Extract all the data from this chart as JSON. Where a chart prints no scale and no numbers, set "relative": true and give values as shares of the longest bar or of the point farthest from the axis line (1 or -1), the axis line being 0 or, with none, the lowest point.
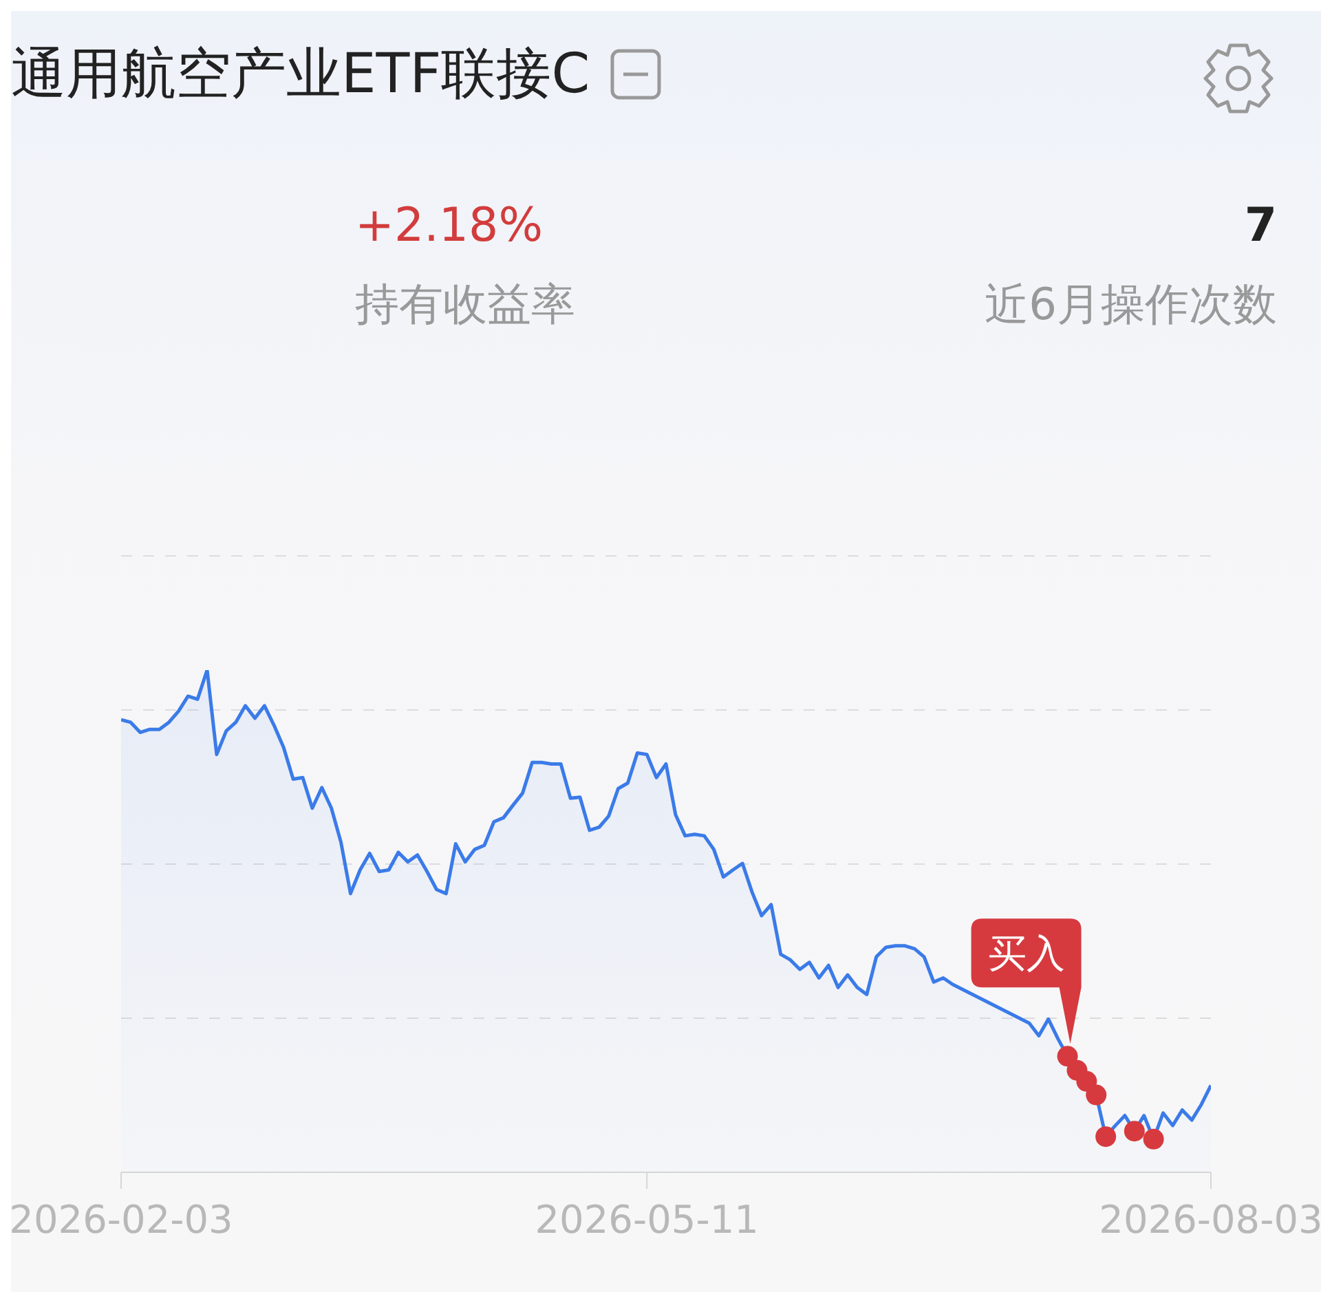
{
  "chart_data": {
    "type": "area",
    "title": "通用航空产业ETF联接C",
    "relative": true,
    "grid": "y",
    "annotations": [
      "+2.18%",
      "持有收益率",
      "7",
      "近6月操作次数",
      "买入"
    ],
    "categories": [
      "2026-02-03",
      null,
      null,
      null,
      null,
      null,
      null,
      null,
      null,
      null,
      null,
      null,
      null,
      null,
      null,
      null,
      null,
      null,
      null,
      null,
      null,
      null,
      null,
      null,
      null,
      null,
      null,
      null,
      null,
      null,
      null,
      null,
      null,
      null,
      null,
      null,
      null,
      null,
      null,
      null,
      null,
      null,
      null,
      null,
      null,
      null,
      null,
      null,
      null,
      null,
      null,
      null,
      null,
      null,
      null,
      "2026-05-11",
      null,
      null,
      null,
      null,
      null,
      null,
      null,
      null,
      null,
      null,
      null,
      null,
      null,
      null,
      null,
      null,
      null,
      null,
      null,
      null,
      null,
      null,
      null,
      null,
      null,
      null,
      null,
      null,
      null,
      null,
      null,
      null,
      null,
      null,
      null,
      null,
      null,
      null,
      null,
      null,
      null,
      null,
      null,
      null,
      null,
      null,
      null,
      null,
      null,
      null,
      null,
      null,
      null,
      null,
      null,
      null,
      null,
      null,
      "2026-08-03"
    ],
    "series": [
      {
        "color": "#3b7be8",
        "values": [
          0.901,
          0.896,
          0.876,
          0.882,
          0.882,
          0.896,
          0.918,
          0.948,
          0.942,
          1,
          0.832,
          0.879,
          0.896,
          0.929,
          0.904,
          0.929,
          0.89,
          0.846,
          0.783,
          0.786,
          0.725,
          0.766,
          0.725,
          0.657,
          0.555,
          0.602,
          0.635,
          0.599,
          0.602,
          0.637,
          0.618,
          0.632,
          0.599,
          0.563,
          0.555,
          0.654,
          0.618,
          0.643,
          0.651,
          0.698,
          0.706,
          0.731,
          0.755,
          0.816,
          0.816,
          0.813,
          0.813,
          0.745,
          0.747,
          0.681,
          0.687,
          0.709,
          0.764,
          0.775,
          0.835,
          0.832,
          0.786,
          0.813,
          0.712,
          0.67,
          0.673,
          0.67,
          0.643,
          0.588,
          0.602,
          0.615,
          0.558,
          0.511,
          0.533,
          0.434,
          0.423,
          0.404,
          0.418,
          0.387,
          0.412,
          0.368,
          0.393,
          0.368,
          0.354,
          0.429,
          0.448,
          0.451,
          0.451,
          0.445,
          0.429,
          0.379,
          0.387,
          0.374,
          null,
          null,
          null,
          null,
          null,
          null,
          null,
          0.297,
          0.272,
          0.305,
          0.266,
          0.231,
          0.203,
          0.181,
          0.154,
          0.071,
          0.093,
          0.113,
          0.082,
          0.113,
          0.066,
          0.118,
          0.093,
          0.124,
          0.104,
          0.135,
          0.173
        ]
      },
      {
        "type": "scatter",
        "color": "#d63a3f",
        "marker": "circle",
        "values": [
          null,
          null,
          null,
          null,
          null,
          null,
          null,
          null,
          null,
          null,
          null,
          null,
          null,
          null,
          null,
          null,
          null,
          null,
          null,
          null,
          null,
          null,
          null,
          null,
          null,
          null,
          null,
          null,
          null,
          null,
          null,
          null,
          null,
          null,
          null,
          null,
          null,
          null,
          null,
          null,
          null,
          null,
          null,
          null,
          null,
          null,
          null,
          null,
          null,
          null,
          null,
          null,
          null,
          null,
          null,
          null,
          null,
          null,
          null,
          null,
          null,
          null,
          null,
          null,
          null,
          null,
          null,
          null,
          null,
          null,
          null,
          null,
          null,
          null,
          null,
          null,
          null,
          null,
          null,
          null,
          null,
          null,
          null,
          null,
          null,
          null,
          null,
          null,
          null,
          null,
          null,
          null,
          null,
          null,
          null,
          null,
          null,
          null,
          null,
          0.231,
          0.203,
          0.181,
          0.154,
          0.071,
          null,
          null,
          0.082,
          null,
          0.066,
          null,
          null,
          null,
          null,
          null,
          null
        ]
      }
    ]
  }
}
